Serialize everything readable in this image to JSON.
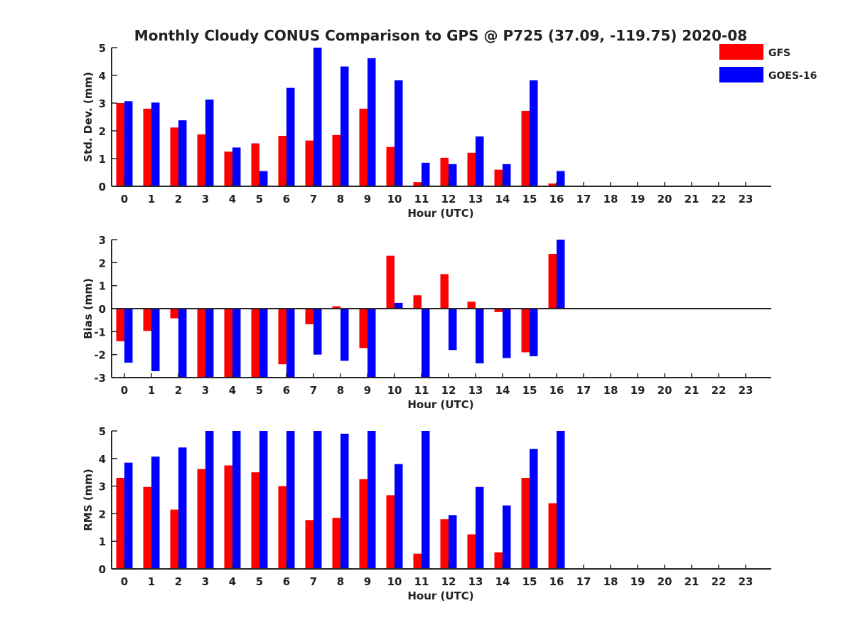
{
  "title": "Monthly Cloudy CONUS Comparison to GPS @ P725 (37.09, -119.75) 2020-08",
  "colors": {
    "GFS": "#ff0000",
    "GOES-16": "#0000ff",
    "axis": "#262626"
  },
  "legend": [
    {
      "name": "GFS",
      "color": "#ff0000"
    },
    {
      "name": "GOES-16",
      "color": "#0000ff"
    }
  ],
  "chart_data": [
    {
      "type": "bar",
      "title": "",
      "xlabel": "Hour (UTC)",
      "ylabel": "Std. Dev. (mm)",
      "categories": [
        "0",
        "1",
        "2",
        "3",
        "4",
        "5",
        "6",
        "7",
        "8",
        "9",
        "10",
        "11",
        "12",
        "13",
        "14",
        "15",
        "16",
        "17",
        "18",
        "19",
        "20",
        "21",
        "22",
        "23"
      ],
      "ylim": [
        0,
        5
      ],
      "yticks": [
        "0",
        "1",
        "2",
        "3",
        "4",
        "5"
      ],
      "series": [
        {
          "name": "GFS",
          "values": [
            3.0,
            2.8,
            2.12,
            1.87,
            1.25,
            1.55,
            1.82,
            1.65,
            1.85,
            2.8,
            1.42,
            0.15,
            1.03,
            1.21,
            0.6,
            2.72,
            0.1,
            null,
            null,
            null,
            null,
            null,
            null,
            null
          ]
        },
        {
          "name": "GOES-16",
          "values": [
            3.07,
            3.02,
            2.38,
            3.13,
            1.4,
            0.55,
            3.55,
            5.0,
            4.32,
            4.62,
            3.82,
            0.85,
            0.8,
            1.8,
            0.8,
            3.82,
            0.55,
            null,
            null,
            null,
            null,
            null,
            null,
            null
          ]
        }
      ]
    },
    {
      "type": "bar",
      "title": "",
      "xlabel": "Hour (UTC)",
      "ylabel": "Bias (mm)",
      "categories": [
        "0",
        "1",
        "2",
        "3",
        "4",
        "5",
        "6",
        "7",
        "8",
        "9",
        "10",
        "11",
        "12",
        "13",
        "14",
        "15",
        "16",
        "17",
        "18",
        "19",
        "20",
        "21",
        "22",
        "23"
      ],
      "ylim": [
        -3,
        3
      ],
      "yticks": [
        "-3",
        "-2",
        "-1",
        "0",
        "1",
        "2",
        "3"
      ],
      "series": [
        {
          "name": "GFS",
          "values": [
            -1.42,
            -0.97,
            -0.42,
            -3.0,
            -3.0,
            -3.0,
            -2.42,
            -0.68,
            0.1,
            -1.72,
            2.3,
            0.58,
            1.5,
            0.3,
            -0.15,
            -1.9,
            2.38,
            null,
            null,
            null,
            null,
            null,
            null,
            null
          ]
        },
        {
          "name": "GOES-16",
          "values": [
            -2.35,
            -2.72,
            -3.0,
            -3.0,
            -3.0,
            -3.0,
            -3.0,
            -2.0,
            -2.27,
            -3.0,
            0.25,
            -3.0,
            -1.8,
            -2.38,
            -2.15,
            -2.07,
            3.0,
            null,
            null,
            null,
            null,
            null,
            null,
            null
          ]
        }
      ]
    },
    {
      "type": "bar",
      "title": "",
      "xlabel": "Hour (UTC)",
      "ylabel": "RMS (mm)",
      "categories": [
        "0",
        "1",
        "2",
        "3",
        "4",
        "5",
        "6",
        "7",
        "8",
        "9",
        "10",
        "11",
        "12",
        "13",
        "14",
        "15",
        "16",
        "17",
        "18",
        "19",
        "20",
        "21",
        "22",
        "23"
      ],
      "ylim": [
        0,
        5
      ],
      "yticks": [
        "0",
        "1",
        "2",
        "3",
        "4",
        "5"
      ],
      "series": [
        {
          "name": "GFS",
          "values": [
            3.3,
            2.97,
            2.15,
            3.62,
            3.75,
            3.5,
            3.0,
            1.77,
            1.85,
            3.25,
            2.67,
            0.55,
            1.8,
            1.25,
            0.6,
            3.3,
            2.38,
            null,
            null,
            null,
            null,
            null,
            null,
            null
          ]
        },
        {
          "name": "GOES-16",
          "values": [
            3.85,
            4.07,
            4.4,
            5.0,
            5.0,
            5.0,
            5.0,
            5.0,
            4.9,
            5.0,
            3.8,
            5.0,
            1.95,
            2.97,
            2.3,
            4.35,
            5.0,
            null,
            null,
            null,
            null,
            null,
            null,
            null
          ]
        }
      ]
    }
  ]
}
